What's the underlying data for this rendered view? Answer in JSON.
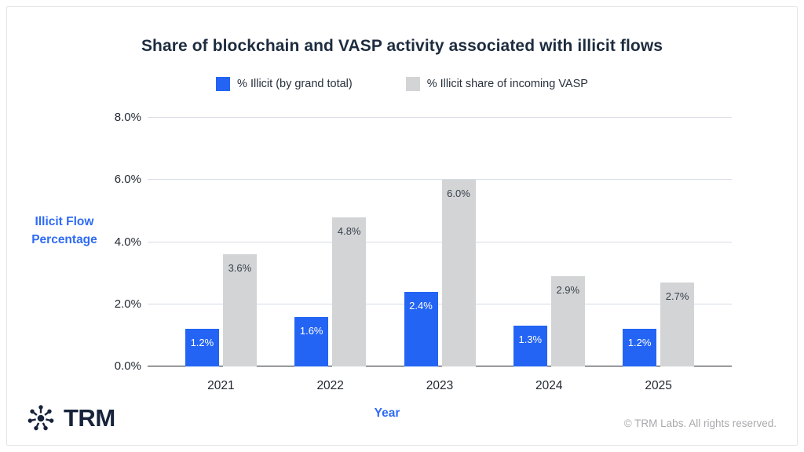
{
  "chart_data": {
    "type": "bar",
    "title": "Share of blockchain and VASP activity associated with illicit flows",
    "categories": [
      "2021",
      "2022",
      "2023",
      "2024",
      "2025"
    ],
    "series": [
      {
        "name": "% Illicit (by grand total)",
        "color": "#2364f4",
        "label_color": "#ffffff",
        "values": [
          1.2,
          1.6,
          2.4,
          1.3,
          1.2
        ],
        "labels": [
          "1.2%",
          "1.6%",
          "2.4%",
          "1.3%",
          "1.2%"
        ]
      },
      {
        "name": "% Illicit share of incoming VASP",
        "color": "#d3d4d6",
        "label_color": "#38404c",
        "values": [
          3.6,
          4.8,
          6.0,
          2.9,
          2.7
        ],
        "labels": [
          "3.6%",
          "4.8%",
          "6.0%",
          "2.9%",
          "2.7%"
        ]
      }
    ],
    "xlabel": "Year",
    "ylabel": "Illicit Flow Percentage",
    "ylim": [
      0,
      8
    ],
    "yticks": [
      {
        "value": 0,
        "label": "0.0%"
      },
      {
        "value": 2,
        "label": "2.0%"
      },
      {
        "value": 4,
        "label": "4.0%"
      },
      {
        "value": 6,
        "label": "6.0%"
      },
      {
        "value": 8,
        "label": "8.0%"
      }
    ],
    "grid": true,
    "legend_position": "top"
  },
  "footer": {
    "brand": "TRM",
    "copyright": "© TRM Labs. All rights reserved."
  },
  "colors": {
    "accent_blue": "#2364f4",
    "axis_title_blue": "#2e6bf4",
    "bar_gray": "#d3d4d6",
    "gridline": "#d7dbe4",
    "axis_line": "#22262b",
    "title_text": "#1d2c3f",
    "tick_text": "#1f2630",
    "copyright_text": "#a7a9ac",
    "logo_navy": "#16233a"
  }
}
